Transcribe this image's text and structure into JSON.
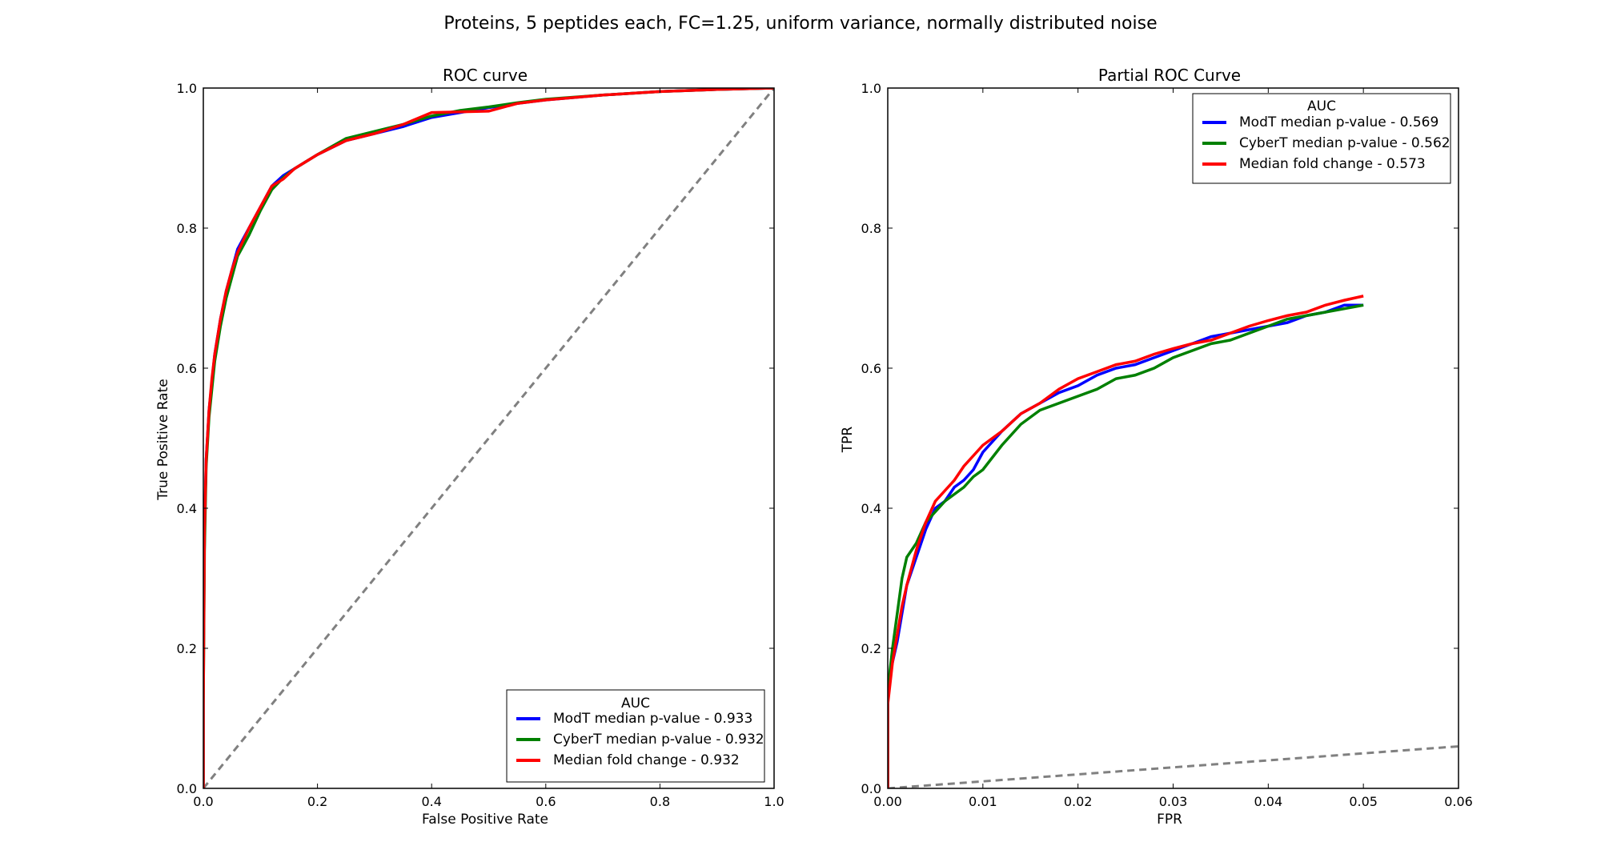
{
  "suptitle": "Proteins, 5 peptides each, FC=1.25, uniform variance, normally distributed noise",
  "colors": {
    "modt": "#0000ff",
    "cybert": "#008000",
    "foldchange": "#ff0000",
    "diagonal": "#808080"
  },
  "chart_data": [
    {
      "type": "line",
      "title": "ROC curve",
      "xlabel": "False Positive Rate",
      "ylabel": "True Positive Rate",
      "xlim": [
        0,
        1
      ],
      "ylim": [
        0,
        1
      ],
      "xticks": [
        "0.0",
        "0.2",
        "0.4",
        "0.6",
        "0.8",
        "1.0"
      ],
      "yticks": [
        "0.0",
        "0.2",
        "0.4",
        "0.6",
        "0.8",
        "1.0"
      ],
      "grid": false,
      "legend": {
        "title": "AUC",
        "placement": "lower-right"
      },
      "diagonal": {
        "x": [
          0,
          1
        ],
        "y": [
          0,
          1
        ],
        "style": "dashed"
      },
      "series": [
        {
          "name": "ModT median p-value - 0.933",
          "color": "#0000ff",
          "x": [
            0,
            0,
            0.002,
            0.005,
            0.01,
            0.015,
            0.02,
            0.03,
            0.04,
            0.05,
            0.06,
            0.08,
            0.1,
            0.12,
            0.14,
            0.16,
            0.2,
            0.25,
            0.3,
            0.35,
            0.4,
            0.45,
            0.5,
            0.55,
            0.6,
            0.7,
            0.8,
            0.9,
            1.0
          ],
          "y": [
            0,
            0.18,
            0.36,
            0.47,
            0.54,
            0.58,
            0.62,
            0.67,
            0.71,
            0.74,
            0.77,
            0.8,
            0.83,
            0.86,
            0.875,
            0.885,
            0.905,
            0.925,
            0.935,
            0.945,
            0.958,
            0.965,
            0.972,
            0.978,
            0.983,
            0.99,
            0.995,
            0.998,
            1.0
          ]
        },
        {
          "name": "CyberT median p-value - 0.932",
          "color": "#008000",
          "x": [
            0,
            0,
            0.002,
            0.005,
            0.01,
            0.015,
            0.02,
            0.03,
            0.04,
            0.05,
            0.06,
            0.08,
            0.1,
            0.12,
            0.14,
            0.16,
            0.2,
            0.25,
            0.3,
            0.35,
            0.4,
            0.45,
            0.5,
            0.55,
            0.6,
            0.7,
            0.8,
            0.9,
            1.0
          ],
          "y": [
            0,
            0.12,
            0.34,
            0.46,
            0.53,
            0.57,
            0.61,
            0.66,
            0.7,
            0.73,
            0.76,
            0.79,
            0.825,
            0.855,
            0.872,
            0.885,
            0.905,
            0.928,
            0.938,
            0.948,
            0.96,
            0.968,
            0.973,
            0.979,
            0.984,
            0.99,
            0.995,
            0.998,
            1.0
          ]
        },
        {
          "name": "Median fold change - 0.932",
          "color": "#ff0000",
          "x": [
            0,
            0,
            0.002,
            0.005,
            0.01,
            0.015,
            0.02,
            0.03,
            0.04,
            0.05,
            0.06,
            0.08,
            0.1,
            0.12,
            0.14,
            0.16,
            0.2,
            0.25,
            0.3,
            0.35,
            0.4,
            0.45,
            0.5,
            0.55,
            0.6,
            0.7,
            0.8,
            0.9,
            1.0
          ],
          "y": [
            0,
            0.12,
            0.37,
            0.47,
            0.54,
            0.585,
            0.62,
            0.67,
            0.71,
            0.74,
            0.765,
            0.8,
            0.83,
            0.86,
            0.87,
            0.885,
            0.905,
            0.925,
            0.935,
            0.948,
            0.965,
            0.966,
            0.967,
            0.978,
            0.983,
            0.99,
            0.995,
            0.998,
            1.0
          ]
        }
      ]
    },
    {
      "type": "line",
      "title": "Partial ROC Curve",
      "xlabel": "FPR",
      "ylabel": "TPR",
      "xlim": [
        0,
        0.06
      ],
      "ylim": [
        0,
        1
      ],
      "xticks": [
        "0.00",
        "0.01",
        "0.02",
        "0.03",
        "0.04",
        "0.05",
        "0.06"
      ],
      "yticks": [
        "0.0",
        "0.2",
        "0.4",
        "0.6",
        "0.8",
        "1.0"
      ],
      "grid": false,
      "legend": {
        "title": "AUC",
        "placement": "upper-right"
      },
      "diagonal": {
        "x": [
          0,
          0.06
        ],
        "y": [
          0,
          0.06
        ],
        "style": "dashed"
      },
      "series": [
        {
          "name": "ModT median p-value - 0.569",
          "color": "#0000ff",
          "x": [
            0,
            0,
            0.0005,
            0.001,
            0.0015,
            0.002,
            0.003,
            0.004,
            0.005,
            0.006,
            0.007,
            0.008,
            0.009,
            0.01,
            0.012,
            0.014,
            0.016,
            0.018,
            0.02,
            0.022,
            0.024,
            0.026,
            0.028,
            0.03,
            0.032,
            0.034,
            0.036,
            0.038,
            0.04,
            0.042,
            0.044,
            0.046,
            0.048,
            0.05
          ],
          "y": [
            0,
            0.15,
            0.18,
            0.21,
            0.25,
            0.29,
            0.33,
            0.37,
            0.4,
            0.41,
            0.43,
            0.44,
            0.455,
            0.48,
            0.51,
            0.535,
            0.55,
            0.565,
            0.575,
            0.59,
            0.6,
            0.605,
            0.615,
            0.625,
            0.635,
            0.645,
            0.65,
            0.655,
            0.66,
            0.665,
            0.675,
            0.68,
            0.69,
            0.69
          ]
        },
        {
          "name": "CyberT median p-value - 0.562",
          "color": "#008000",
          "x": [
            0,
            0,
            0.0005,
            0.001,
            0.0015,
            0.002,
            0.003,
            0.004,
            0.005,
            0.006,
            0.007,
            0.008,
            0.009,
            0.01,
            0.012,
            0.014,
            0.016,
            0.018,
            0.02,
            0.022,
            0.024,
            0.026,
            0.028,
            0.03,
            0.032,
            0.034,
            0.036,
            0.038,
            0.04,
            0.042,
            0.044,
            0.046,
            0.048,
            0.05
          ],
          "y": [
            0,
            0.14,
            0.2,
            0.25,
            0.3,
            0.33,
            0.35,
            0.38,
            0.395,
            0.41,
            0.42,
            0.43,
            0.445,
            0.455,
            0.49,
            0.52,
            0.54,
            0.55,
            0.56,
            0.57,
            0.585,
            0.59,
            0.6,
            0.615,
            0.625,
            0.635,
            0.64,
            0.65,
            0.66,
            0.67,
            0.675,
            0.68,
            0.685,
            0.69
          ]
        },
        {
          "name": "Median fold change - 0.573",
          "color": "#ff0000",
          "x": [
            0,
            0,
            0.0005,
            0.001,
            0.0015,
            0.002,
            0.003,
            0.004,
            0.005,
            0.006,
            0.007,
            0.008,
            0.009,
            0.01,
            0.012,
            0.014,
            0.016,
            0.018,
            0.02,
            0.022,
            0.024,
            0.026,
            0.028,
            0.03,
            0.032,
            0.034,
            0.036,
            0.038,
            0.04,
            0.042,
            0.044,
            0.046,
            0.048,
            0.05
          ],
          "y": [
            0,
            0.12,
            0.18,
            0.22,
            0.26,
            0.29,
            0.34,
            0.38,
            0.41,
            0.425,
            0.44,
            0.46,
            0.475,
            0.49,
            0.51,
            0.535,
            0.55,
            0.57,
            0.585,
            0.595,
            0.605,
            0.61,
            0.62,
            0.628,
            0.635,
            0.64,
            0.65,
            0.66,
            0.668,
            0.675,
            0.68,
            0.69,
            0.697,
            0.703
          ]
        }
      ]
    }
  ]
}
